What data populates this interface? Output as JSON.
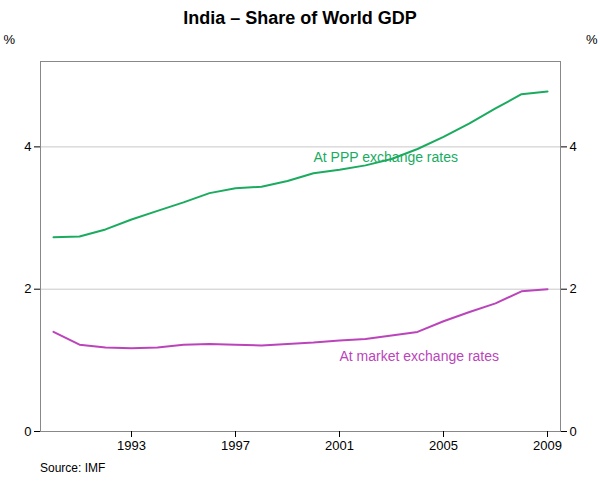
{
  "chart_data": {
    "type": "line",
    "title": "India – Share of World GDP",
    "source": "Source: IMF",
    "x": [
      1990,
      1991,
      1992,
      1993,
      1994,
      1995,
      1996,
      1997,
      1998,
      1999,
      2000,
      2001,
      2002,
      2003,
      2004,
      2005,
      2006,
      2007,
      2008,
      2009
    ],
    "series": [
      {
        "name": "At PPP exchange rates",
        "color": "#1aab5f",
        "values": [
          2.73,
          2.74,
          2.84,
          2.98,
          3.1,
          3.22,
          3.35,
          3.42,
          3.44,
          3.52,
          3.63,
          3.68,
          3.74,
          3.83,
          3.97,
          4.14,
          4.33,
          4.54,
          4.74,
          4.78
        ]
      },
      {
        "name": "At market exchange rates",
        "color": "#bb44bb",
        "values": [
          1.4,
          1.22,
          1.18,
          1.17,
          1.18,
          1.22,
          1.23,
          1.22,
          1.21,
          1.23,
          1.25,
          1.28,
          1.3,
          1.35,
          1.4,
          1.55,
          1.68,
          1.8,
          1.97,
          2.0
        ]
      }
    ],
    "xlim": [
      1989.5,
      2009.5
    ],
    "xticks": [
      1993,
      1997,
      2001,
      2005,
      2009
    ],
    "ylim": [
      0,
      5.2
    ],
    "yticks": [
      0,
      2,
      4
    ],
    "ylabel": "%",
    "y2lim": [
      0,
      5.2
    ],
    "y2ticks": [
      0,
      2,
      4
    ],
    "y2label": "%",
    "grid": true
  }
}
